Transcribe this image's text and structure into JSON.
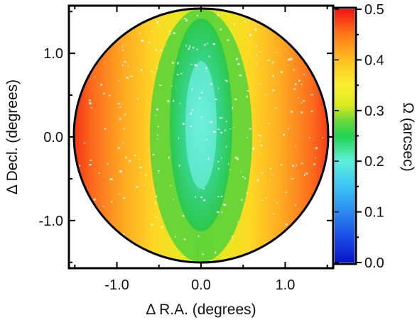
{
  "chart_data": [
    {
      "type": "heatmap",
      "title": "",
      "xlabel": "Δ R.A. (degrees)",
      "ylabel": "Δ Decl. (degrees)",
      "xlim": [
        -1.57,
        1.57
      ],
      "ylim": [
        -1.57,
        1.57
      ],
      "x_ticks": [
        -1.0,
        0.0,
        1.0
      ],
      "x_tick_labels": [
        "-1.0",
        "0.0",
        "1.0"
      ],
      "y_ticks": [
        -1.0,
        0.0,
        1.0
      ],
      "y_tick_labels": [
        "-1.0",
        "0.0",
        "1.0"
      ],
      "grid": false,
      "field_radius_deg": 1.5,
      "field_outline_color": "#000000",
      "value_description": "plate-scale error Ω across circular field; minimum ~0.20 at center, rising to ~0.30 in lens-shaped green band along Δ R.A.=0, reaching ~0.5 at the Δ R.A. = ±1.5 edges",
      "samples": [
        {
          "ra": 0.0,
          "dec": 0.0,
          "value": 0.21
        },
        {
          "ra": 0.0,
          "dec": 0.6,
          "value": 0.22
        },
        {
          "ra": 0.0,
          "dec": -0.6,
          "value": 0.24
        },
        {
          "ra": 0.0,
          "dec": 1.3,
          "value": 0.28
        },
        {
          "ra": 0.0,
          "dec": -1.3,
          "value": 0.3
        },
        {
          "ra": 0.25,
          "dec": 0.0,
          "value": 0.28
        },
        {
          "ra": 0.5,
          "dec": 0.0,
          "value": 0.33
        },
        {
          "ra": 0.8,
          "dec": 0.0,
          "value": 0.36
        },
        {
          "ra": 1.1,
          "dec": 0.0,
          "value": 0.41
        },
        {
          "ra": 1.4,
          "dec": 0.0,
          "value": 0.47
        },
        {
          "ra": -1.4,
          "dec": 0.0,
          "value": 0.48
        }
      ]
    },
    {
      "type": "colorbar",
      "label": "Ω (arcsec)",
      "range": [
        0.0,
        0.5
      ],
      "ticks": [
        0.0,
        0.1,
        0.2,
        0.3,
        0.4,
        0.5
      ],
      "tick_labels": [
        "0.0",
        "0.1",
        "0.2",
        "0.3",
        "0.4",
        "0.5"
      ],
      "colorscale": [
        {
          "value": 0.0,
          "color": "#0a14c8"
        },
        {
          "value": 0.05,
          "color": "#1a4ce6"
        },
        {
          "value": 0.1,
          "color": "#2c8af0"
        },
        {
          "value": 0.15,
          "color": "#3cc4f4"
        },
        {
          "value": 0.2,
          "color": "#5ef0dc"
        },
        {
          "value": 0.25,
          "color": "#22d450"
        },
        {
          "value": 0.28,
          "color": "#6ad83c"
        },
        {
          "value": 0.31,
          "color": "#dce81e"
        },
        {
          "value": 0.35,
          "color": "#f8f030"
        },
        {
          "value": 0.4,
          "color": "#ffc020"
        },
        {
          "value": 0.45,
          "color": "#ff7818"
        },
        {
          "value": 0.5,
          "color": "#f21414"
        }
      ]
    }
  ]
}
